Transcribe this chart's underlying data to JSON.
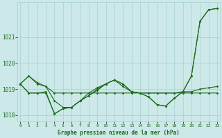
{
  "xlabel": "Graphe pression niveau de la mer (hPa)",
  "x": [
    0,
    1,
    2,
    3,
    4,
    5,
    6,
    7,
    8,
    9,
    10,
    11,
    12,
    13,
    14,
    15,
    16,
    17,
    18,
    19,
    20,
    21,
    22,
    23
  ],
  "line1": [
    1019.2,
    1019.5,
    1019.2,
    1019.1,
    1018.85,
    1018.85,
    1018.85,
    1018.85,
    1018.85,
    1018.85,
    1018.85,
    1018.85,
    1018.85,
    1018.85,
    1018.85,
    1018.85,
    1018.85,
    1018.85,
    1018.85,
    1018.85,
    1018.85,
    1018.85,
    1018.85,
    1018.85
  ],
  "line2": [
    1019.2,
    1018.85,
    1018.85,
    1018.85,
    1018.05,
    1018.25,
    1018.3,
    1018.55,
    1018.75,
    1019.0,
    1019.2,
    1019.35,
    1019.2,
    1018.9,
    1018.85,
    1018.7,
    1018.4,
    1018.35,
    1018.65,
    1018.9,
    1019.5,
    1021.6,
    1022.05,
    1022.1
  ],
  "line3": [
    1019.2,
    1018.85,
    1018.85,
    1018.9,
    1018.05,
    1018.25,
    1018.3,
    1018.55,
    1018.75,
    1018.95,
    1019.2,
    1019.35,
    1019.1,
    1018.9,
    1018.85,
    1018.85,
    1018.85,
    1018.85,
    1018.85,
    1018.9,
    1018.9,
    1019.0,
    1019.05,
    1019.1
  ],
  "line4": [
    1019.2,
    1019.5,
    1019.25,
    1019.1,
    1018.55,
    1018.3,
    1018.3,
    1018.55,
    1018.85,
    1019.05,
    1019.2,
    1019.35,
    1019.2,
    1018.9,
    1018.85,
    1018.7,
    1018.4,
    1018.35,
    1018.65,
    1018.9,
    1019.5,
    1021.6,
    1022.05,
    1022.1
  ],
  "line_color": "#1a6b1a",
  "bg_color": "#cce8e8",
  "grid_color": "#a8d0d0",
  "tick_label_color": "#1a6b1a",
  "xlabel_color": "#1a6b1a",
  "ylim": [
    1017.75,
    1022.35
  ],
  "yticks": [
    1018,
    1019,
    1020,
    1021
  ],
  "xticks": [
    0,
    1,
    2,
    3,
    4,
    5,
    6,
    7,
    8,
    9,
    10,
    11,
    12,
    13,
    14,
    15,
    16,
    17,
    18,
    19,
    20,
    21,
    22,
    23
  ]
}
